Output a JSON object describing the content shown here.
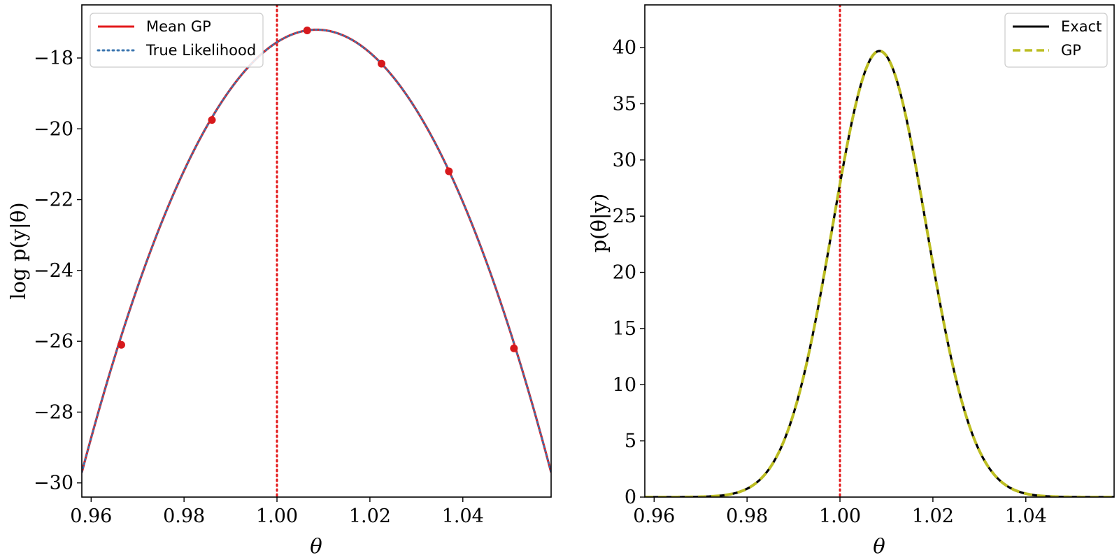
{
  "chart_data": [
    {
      "type": "line",
      "xlabel": "θ",
      "ylabel": "log p(y|θ)",
      "xlim": [
        0.958,
        1.059
      ],
      "ylim": [
        -30.4,
        -16.5
      ],
      "xticks": [
        0.96,
        0.98,
        1.0,
        1.02,
        1.04
      ],
      "xtick_labels": [
        "0.96",
        "0.98",
        "1.00",
        "1.02",
        "1.04"
      ],
      "yticks": [
        -30,
        -28,
        -26,
        -24,
        -22,
        -20,
        -18
      ],
      "ytick_labels": [
        "−30",
        "−28",
        "−26",
        "−24",
        "−22",
        "−20",
        "−18"
      ],
      "curve": {
        "peak_x": 1.0085,
        "peak_y": -17.2,
        "curvature": 4902
      },
      "series": [
        {
          "name": "Mean GP",
          "color": "#e31a1c",
          "style": "solid"
        },
        {
          "name": "True Likelihood",
          "color": "#3b75af",
          "style": "dotted"
        }
      ],
      "points": {
        "color": "#d7191c",
        "x": [
          0.9665,
          0.986,
          1.0065,
          1.0225,
          1.037,
          1.051
        ],
        "y": [
          -26.1,
          -19.75,
          -17.22,
          -18.16,
          -21.2,
          -26.2
        ]
      },
      "vline": {
        "x": 1.0,
        "color": "#e31a1c",
        "style": "dotted"
      },
      "legend": {
        "placement": "upper left"
      },
      "grid": false
    },
    {
      "type": "line",
      "xlabel": "θ",
      "ylabel": "p(θ|y)",
      "xlim": [
        0.958,
        1.059
      ],
      "ylim": [
        0,
        43.8
      ],
      "xticks": [
        0.96,
        0.98,
        1.0,
        1.02,
        1.04
      ],
      "xtick_labels": [
        "0.96",
        "0.98",
        "1.00",
        "1.02",
        "1.04"
      ],
      "yticks": [
        0,
        5,
        10,
        15,
        20,
        25,
        30,
        35,
        40
      ],
      "ytick_labels": [
        "0",
        "5",
        "10",
        "15",
        "20",
        "25",
        "30",
        "35",
        "40"
      ],
      "curve": {
        "mean": 1.0085,
        "sd": 0.0101,
        "peak": 39.7
      },
      "series": [
        {
          "name": "Exact",
          "color": "#000000",
          "style": "solid"
        },
        {
          "name": "GP",
          "color": "#bcbd22",
          "style": "dashed"
        }
      ],
      "vline": {
        "x": 1.0,
        "color": "#e31a1c",
        "style": "dotted"
      },
      "legend": {
        "placement": "upper right"
      },
      "grid": false
    }
  ]
}
